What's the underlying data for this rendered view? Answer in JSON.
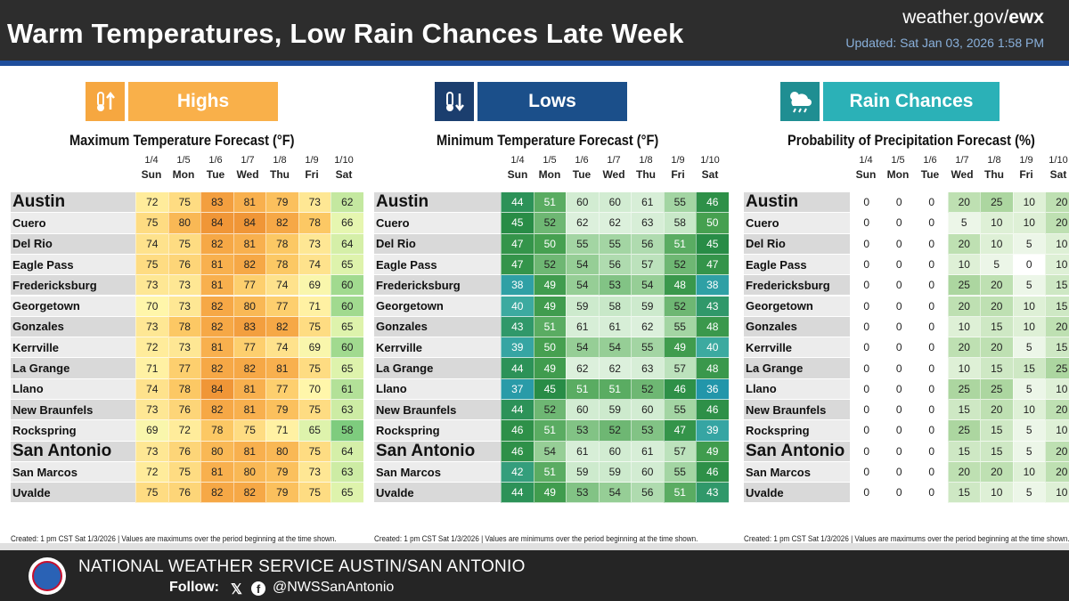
{
  "header": {
    "title": "Warm Temperatures, Low Rain Chances Late Week",
    "site_prefix": "weather.gov/",
    "site_suffix": "ewx",
    "updated": "Updated: Sat Jan 03, 2026 1:58 PM"
  },
  "colors": {
    "highs": "#f6a740",
    "lows": "#1b4f8a",
    "rain": "#2bb1b7"
  },
  "dates": [
    "1/4",
    "1/5",
    "1/6",
    "1/7",
    "1/8",
    "1/9",
    "1/10"
  ],
  "days": [
    "Sun",
    "Mon",
    "Tue",
    "Wed",
    "Thu",
    "Fri",
    "Sat"
  ],
  "cities": [
    "Austin",
    "Cuero",
    "Del Rio",
    "Eagle Pass",
    "Fredericksburg",
    "Georgetown",
    "Gonzales",
    "Kerrville",
    "La Grange",
    "Llano",
    "New Braunfels",
    "Rockspring",
    "San Antonio",
    "San Marcos",
    "Uvalde"
  ],
  "highs": {
    "badge": "Highs",
    "title": "Maximum Temperature Forecast (°F)",
    "footnote": "Created: 1 pm CST Sat 1/3/2026  |  Values are maximums over the period beginning at the time shown.",
    "values": [
      [
        72,
        75,
        83,
        81,
        79,
        73,
        62
      ],
      [
        75,
        80,
        84,
        84,
        82,
        78,
        66
      ],
      [
        74,
        75,
        82,
        81,
        78,
        73,
        64
      ],
      [
        75,
        76,
        81,
        82,
        78,
        74,
        65
      ],
      [
        73,
        73,
        81,
        77,
        74,
        69,
        60
      ],
      [
        70,
        73,
        82,
        80,
        77,
        71,
        60
      ],
      [
        73,
        78,
        82,
        83,
        82,
        75,
        65
      ],
      [
        72,
        73,
        81,
        77,
        74,
        69,
        60
      ],
      [
        71,
        77,
        82,
        82,
        81,
        75,
        65
      ],
      [
        74,
        78,
        84,
        81,
        77,
        70,
        61
      ],
      [
        73,
        76,
        82,
        81,
        79,
        75,
        63
      ],
      [
        69,
        72,
        78,
        75,
        71,
        65,
        58
      ],
      [
        73,
        76,
        80,
        81,
        80,
        75,
        64
      ],
      [
        72,
        75,
        81,
        80,
        79,
        73,
        63
      ],
      [
        75,
        76,
        82,
        82,
        79,
        75,
        65
      ]
    ]
  },
  "lows": {
    "badge": "Lows",
    "title": "Minimum Temperature Forecast (°F)",
    "footnote": "Created: 1 pm CST Sat 1/3/2026  |  Values are minimums over the period beginning at the time shown.",
    "values": [
      [
        44,
        51,
        60,
        60,
        61,
        55,
        46
      ],
      [
        45,
        52,
        62,
        62,
        63,
        58,
        50
      ],
      [
        47,
        50,
        55,
        55,
        56,
        51,
        45
      ],
      [
        47,
        52,
        54,
        56,
        57,
        52,
        47
      ],
      [
        38,
        49,
        54,
        53,
        54,
        48,
        38
      ],
      [
        40,
        49,
        59,
        58,
        59,
        52,
        43
      ],
      [
        43,
        51,
        61,
        61,
        62,
        55,
        48
      ],
      [
        39,
        50,
        54,
        54,
        55,
        49,
        40
      ],
      [
        44,
        49,
        62,
        62,
        63,
        57,
        48
      ],
      [
        37,
        45,
        51,
        51,
        52,
        46,
        36
      ],
      [
        44,
        52,
        60,
        59,
        60,
        55,
        46
      ],
      [
        46,
        51,
        53,
        52,
        53,
        47,
        39
      ],
      [
        46,
        54,
        61,
        60,
        61,
        57,
        49
      ],
      [
        42,
        51,
        59,
        59,
        60,
        55,
        46
      ],
      [
        44,
        49,
        53,
        54,
        56,
        51,
        43
      ]
    ]
  },
  "rain": {
    "badge": "Rain Chances",
    "title": "Probability of Precipitation Forecast (%)",
    "footnote": "Created: 1 pm CST Sat 1/3/2026  |  Values are maximums over the period beginning at the time shown.",
    "values": [
      [
        0,
        0,
        0,
        20,
        25,
        10,
        20
      ],
      [
        0,
        0,
        0,
        5,
        10,
        10,
        20
      ],
      [
        0,
        0,
        0,
        20,
        10,
        5,
        10
      ],
      [
        0,
        0,
        0,
        10,
        5,
        0,
        10
      ],
      [
        0,
        0,
        0,
        25,
        20,
        5,
        15
      ],
      [
        0,
        0,
        0,
        20,
        20,
        10,
        15
      ],
      [
        0,
        0,
        0,
        10,
        15,
        10,
        20
      ],
      [
        0,
        0,
        0,
        20,
        20,
        5,
        15
      ],
      [
        0,
        0,
        0,
        10,
        15,
        15,
        25
      ],
      [
        0,
        0,
        0,
        25,
        25,
        5,
        10
      ],
      [
        0,
        0,
        0,
        15,
        20,
        10,
        20
      ],
      [
        0,
        0,
        0,
        25,
        15,
        5,
        10
      ],
      [
        0,
        0,
        0,
        15,
        15,
        5,
        20
      ],
      [
        0,
        0,
        0,
        20,
        20,
        10,
        20
      ],
      [
        0,
        0,
        0,
        15,
        10,
        5,
        10
      ]
    ]
  },
  "footer": {
    "title": "NATIONAL WEATHER SERVICE AUSTIN/SAN ANTONIO",
    "follow": "Follow:",
    "x_glyph": "𝕏",
    "fb_glyph": "f",
    "handle": "@NWSSanAntonio"
  }
}
